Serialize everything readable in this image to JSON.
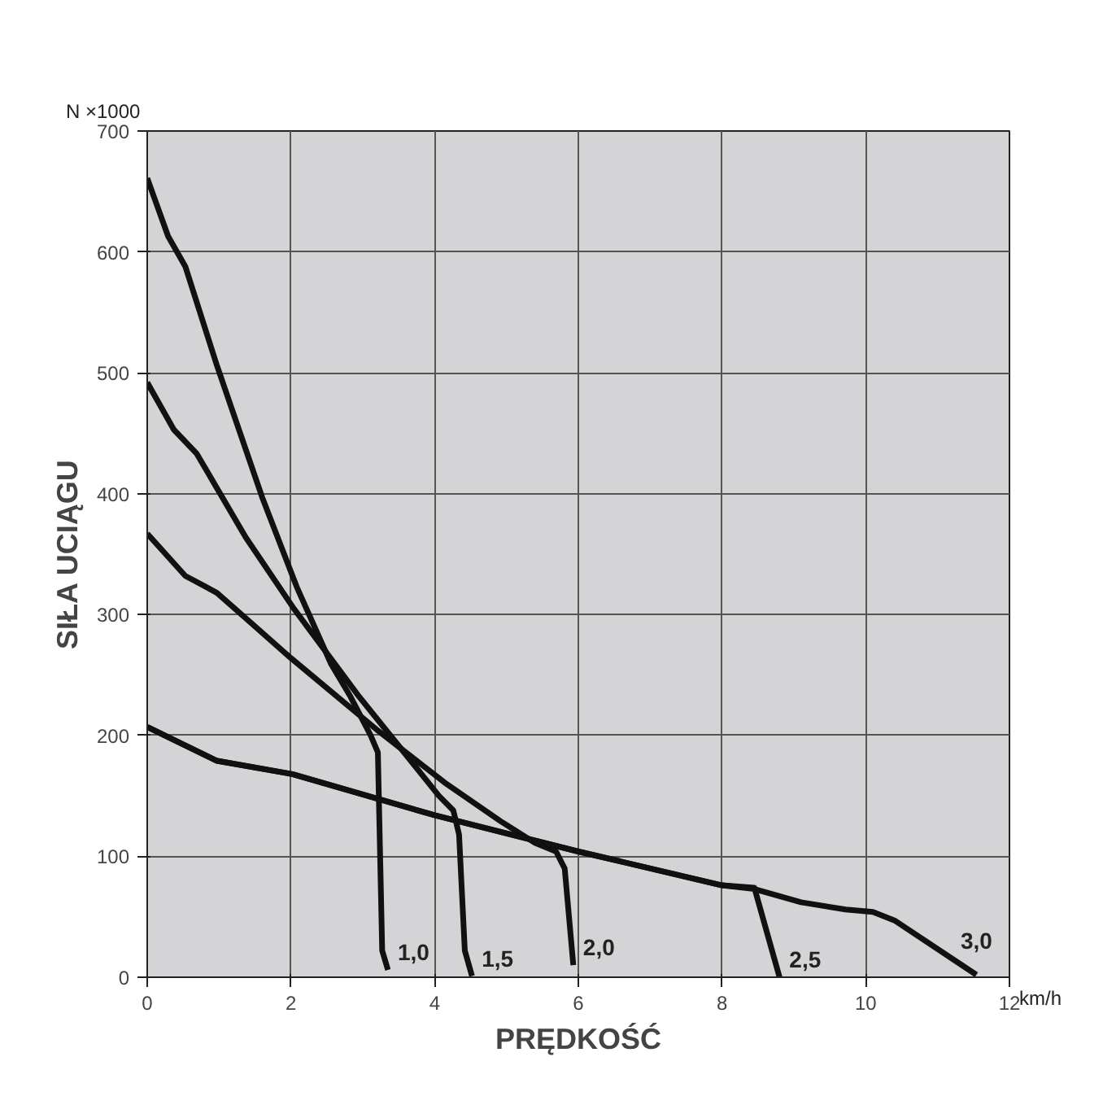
{
  "chart_data": {
    "type": "line",
    "xlabel": "PRĘDKOŚĆ",
    "ylabel": "SIŁA UCIĄGU",
    "annotations": [
      "N ×1000",
      "km/h"
    ],
    "xlim": [
      0,
      12
    ],
    "ylim": [
      0,
      700
    ],
    "xticks": [
      0,
      2,
      4,
      6,
      8,
      10,
      12
    ],
    "yticks": [
      0,
      100,
      200,
      300,
      400,
      500,
      600,
      700
    ],
    "grid": true,
    "marker": "none",
    "line_style": "solid",
    "series": [
      {
        "name": "1,0",
        "color": "#111111",
        "x": [
          0,
          0.29,
          0.53,
          0.97,
          1.6,
          2.08,
          2.56,
          2.83,
          3.11,
          3.21,
          3.27,
          3.35
        ],
        "values": [
          661,
          613,
          588,
          506,
          397,
          323,
          259,
          232,
          200,
          186,
          22,
          6
        ]
      },
      {
        "name": "1,5",
        "color": "#111111",
        "x": [
          0,
          0.37,
          0.69,
          1.37,
          2.04,
          2.95,
          3.75,
          4.06,
          4.26,
          4.34,
          4.42,
          4.52
        ],
        "values": [
          492,
          453,
          433,
          364,
          305,
          232,
          173,
          150,
          138,
          118,
          22,
          1
        ]
      },
      {
        "name": "2,0",
        "color": "#111111",
        "x": [
          0,
          0.53,
          0.97,
          2.0,
          3.19,
          4.14,
          4.92,
          5.4,
          5.69,
          5.81,
          5.93
        ],
        "values": [
          367,
          332,
          318,
          264,
          205,
          161,
          129,
          111,
          104,
          90,
          10
        ]
      },
      {
        "name": "2,5",
        "color": "#111111",
        "x": [
          0,
          0.97,
          2.02,
          4,
          6,
          8,
          8.45,
          8.8
        ],
        "values": [
          207,
          179,
          168,
          134,
          104,
          76,
          74,
          0
        ]
      },
      {
        "name": "3,0",
        "color": "#111111",
        "x": [
          0,
          0.97,
          2.02,
          4,
          6,
          8,
          8.45,
          9.1,
          9.72,
          10.1,
          10.4,
          11.54
        ],
        "values": [
          207,
          179,
          168,
          134,
          104,
          76,
          73,
          62,
          56,
          54,
          47,
          2
        ]
      }
    ]
  }
}
